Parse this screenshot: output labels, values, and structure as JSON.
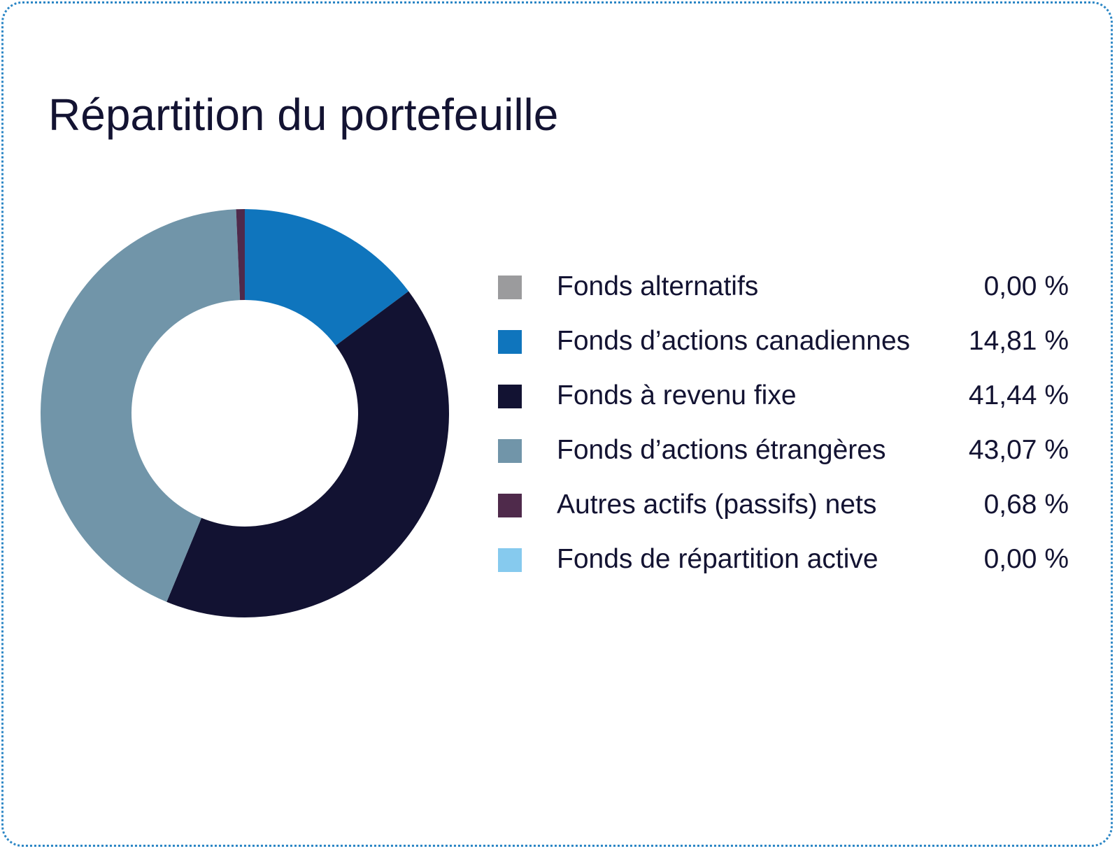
{
  "chart_data": {
    "type": "pie",
    "title": "Répartition du portefeuille",
    "categories": [
      "Fonds alternatifs",
      "Fonds d’actions canadiennes",
      "Fonds à revenu fixe",
      "Fonds d’actions étrangères",
      "Autres actifs (passifs) nets",
      "Fonds de répartition active"
    ],
    "values": [
      0.0,
      14.81,
      41.44,
      43.07,
      0.68,
      0.0
    ],
    "value_labels": [
      "0,00 %",
      "14,81 %",
      "41,44 %",
      "43,07 %",
      "0,68 %",
      "0,00 %"
    ],
    "colors": [
      "#9b9b9d",
      "#0f75bd",
      "#121232",
      "#7195a9",
      "#4f2a4b",
      "#86caee"
    ],
    "donut": true,
    "legend_position": "right"
  }
}
